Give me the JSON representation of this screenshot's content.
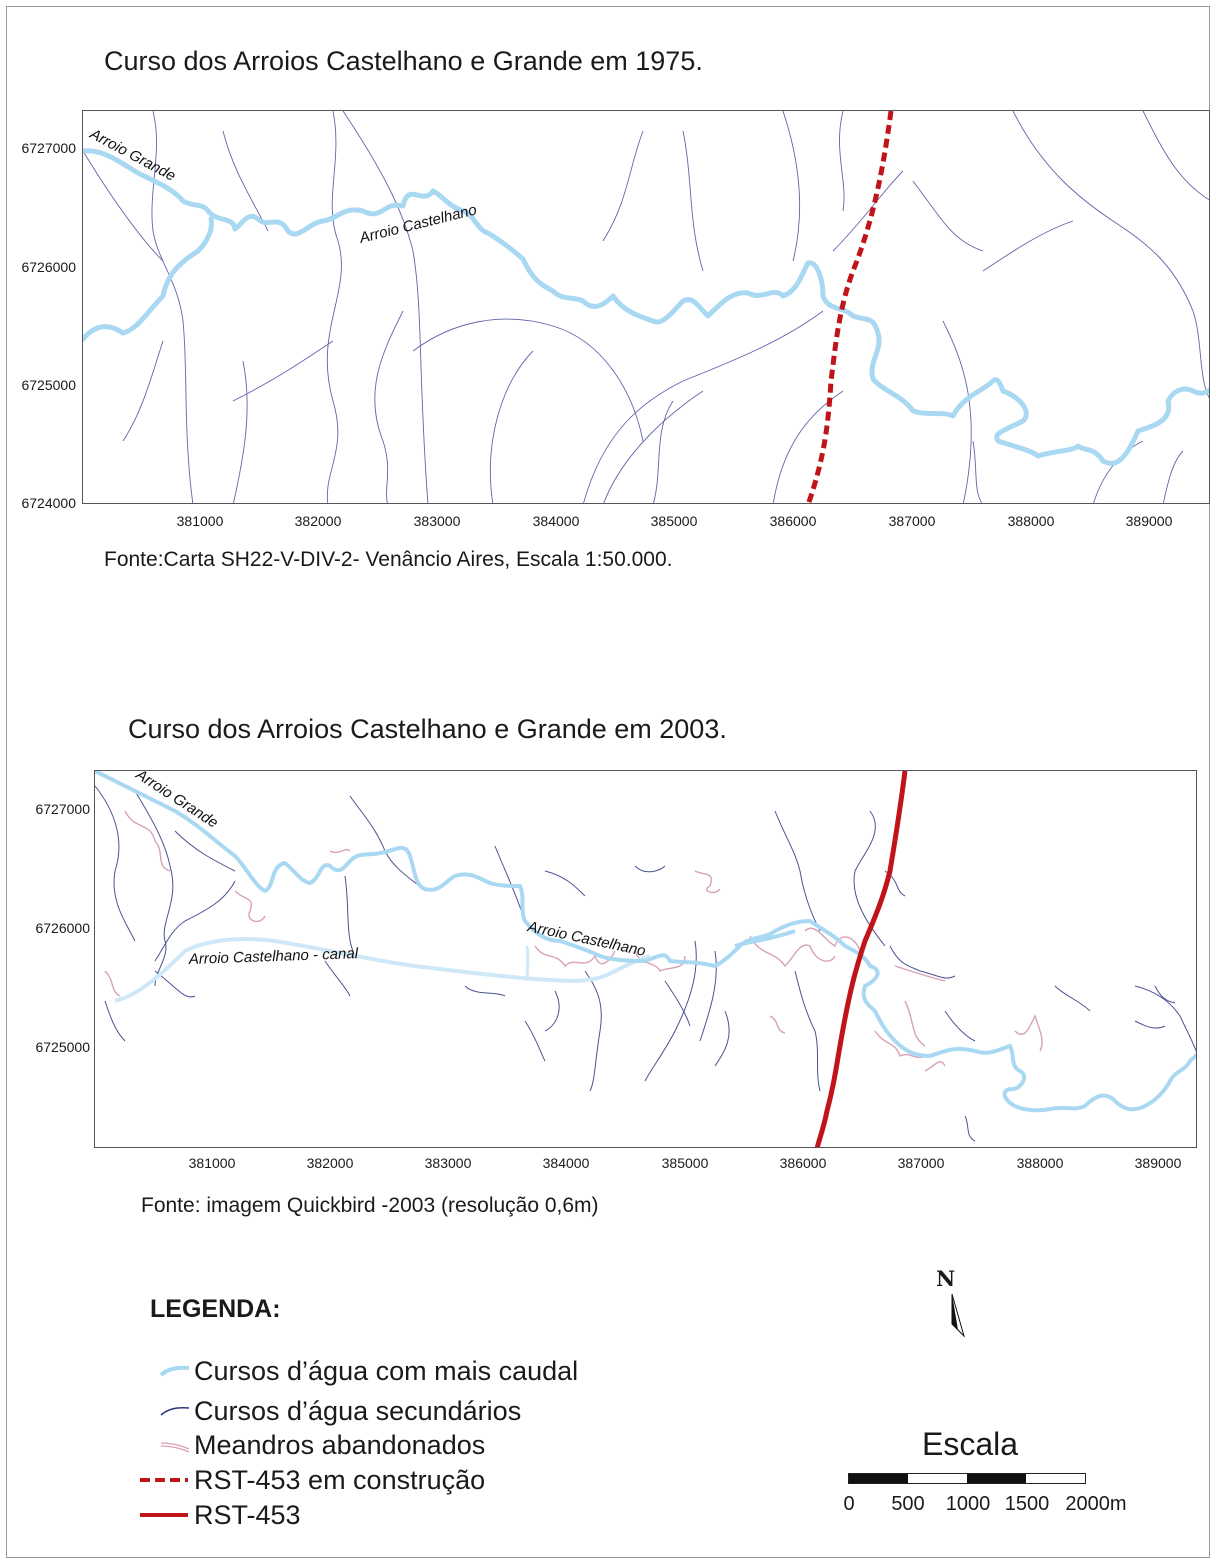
{
  "map1": {
    "title": "Curso dos Arroios Castelhano e Grande em 1975.",
    "source": "Fonte:Carta SH22-V-DIV-2- Venâncio Aires, Escala 1:50.000.",
    "y_ticks": [
      "6727000",
      "6726000",
      "6725000",
      "6724000"
    ],
    "x_ticks": [
      "381000",
      "382000",
      "383000",
      "384000",
      "385000",
      "386000",
      "387000",
      "388000",
      "389000"
    ],
    "river_labels": {
      "arroio_grande": "Arroio Grande",
      "arroio_castelhano": "Arroio Castelhano"
    }
  },
  "map2": {
    "title": "Curso dos Arroios Castelhano e Grande em 2003.",
    "source": "Fonte: imagem Quickbird -2003 (resolução 0,6m)",
    "y_ticks": [
      "6727000",
      "6726000",
      "6725000"
    ],
    "x_ticks": [
      "381000",
      "382000",
      "383000",
      "384000",
      "385000",
      "386000",
      "387000",
      "388000",
      "389000"
    ],
    "river_labels": {
      "arroio_grande": "Arroio Grande",
      "arroio_castelhano": "Arroio Castelhano",
      "canal": "Arroio Castelhano - canal"
    }
  },
  "legend": {
    "title": "LEGENDA:",
    "items": [
      {
        "label": "Cursos d’água com mais caudal",
        "color": "#a9d8f2"
      },
      {
        "label": "Cursos d’água secundários",
        "color": "#2d3480"
      },
      {
        "label": "Meandros abandonados",
        "color": "#d9a0b8"
      },
      {
        "label": "RST-453 em construção",
        "color": "#c0141a"
      },
      {
        "label": "RST-453",
        "color": "#c0141a"
      }
    ]
  },
  "north_arrow": {
    "letter": "N"
  },
  "scale": {
    "title": "Escala",
    "labels": [
      "0",
      "500",
      "1000",
      "1500",
      "2000m"
    ]
  }
}
